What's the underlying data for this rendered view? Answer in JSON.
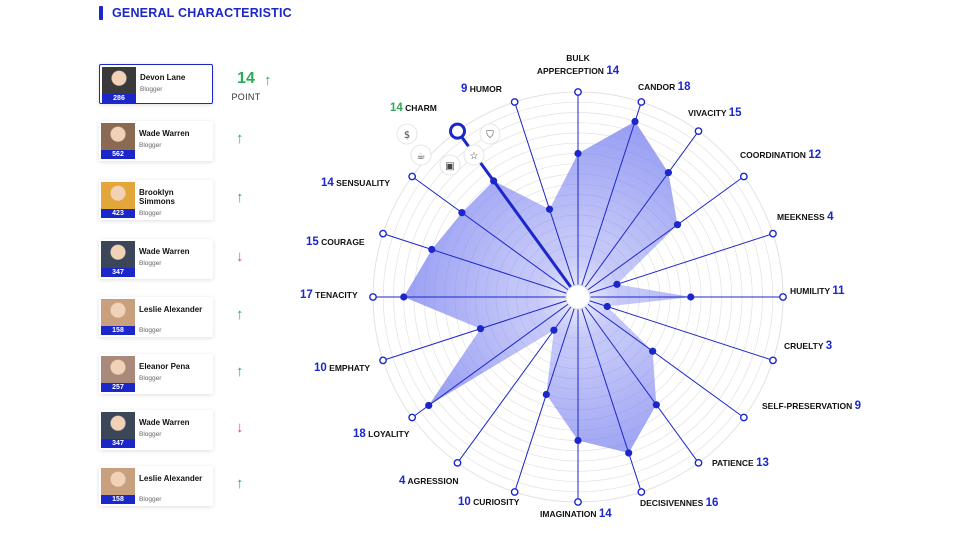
{
  "header": {
    "title": "GENERAL CHARACTERISTIC"
  },
  "users": [
    {
      "name": "Devon Lane",
      "role": "Blogger",
      "score": "286",
      "trend": "none",
      "active": true,
      "photo": "#3a3a3a"
    },
    {
      "name": "Wade Warren",
      "role": "Blogger",
      "score": "562",
      "trend": "up",
      "active": false,
      "photo": "#8a6a52"
    },
    {
      "name": "Brooklyn Simmons",
      "role": "Blogger",
      "score": "423",
      "trend": "up",
      "active": false,
      "photo": "#e2a63a"
    },
    {
      "name": "Wade Warren",
      "role": "Blogger",
      "score": "347",
      "trend": "down",
      "active": false,
      "photo": "#3b4758"
    },
    {
      "name": "Leslie Alexander",
      "role": "Blogger",
      "score": "158",
      "trend": "up",
      "active": false,
      "photo": "#c9a07e"
    },
    {
      "name": "Eleanor Pena",
      "role": "Blogger",
      "score": "257",
      "trend": "up",
      "active": false,
      "photo": "#a98a7a"
    },
    {
      "name": "Wade Warren",
      "role": "Blogger",
      "score": "347",
      "trend": "down",
      "active": false,
      "photo": "#3b4758"
    },
    {
      "name": "Leslie Alexander",
      "role": "Blogger",
      "score": "158",
      "trend": "up",
      "active": false,
      "photo": "#c9a07e"
    }
  ],
  "points": {
    "value": "14",
    "label": "POINT"
  },
  "icons": {
    "popover": [
      "dollar-icon",
      "shield-icon",
      "coffee-icon",
      "briefcase-icon",
      "star-icon"
    ],
    "arrow_up": "↑",
    "arrow_down": "↓"
  },
  "colors": {
    "accent": "#1c27c9",
    "fill": "#7b82f0",
    "up": "#2daa55",
    "down": "#e0514c"
  },
  "chart_data": {
    "type": "radar",
    "rmax": 20,
    "axes": [
      {
        "label": "BULK APPERCEPTION",
        "value": 14
      },
      {
        "label": "CANDOR",
        "value": 18
      },
      {
        "label": "VIVACITY",
        "value": 15
      },
      {
        "label": "COORDINATION",
        "value": 12
      },
      {
        "label": "MEEKNESS",
        "value": 4
      },
      {
        "label": "HUMILITY",
        "value": 11
      },
      {
        "label": "CRUELTY",
        "value": 3
      },
      {
        "label": "SELF-PRESERVATION",
        "value": 9
      },
      {
        "label": "PATIENCE",
        "value": 13
      },
      {
        "label": "DECISIVENNES",
        "value": 16
      },
      {
        "label": "IMAGINATION",
        "value": 14
      },
      {
        "label": "CURIOSITY",
        "value": 10
      },
      {
        "label": "AGRESSION",
        "value": 4
      },
      {
        "label": "LOYALITY",
        "value": 18
      },
      {
        "label": "EMPHATY",
        "value": 10
      },
      {
        "label": "TENACITY",
        "value": 17
      },
      {
        "label": "COURAGE",
        "value": 15
      },
      {
        "label": "SENSUALITY",
        "value": 14
      },
      {
        "label": "CHARM",
        "value": 14,
        "highlight": true
      },
      {
        "label": "HUMOR",
        "value": 9
      }
    ]
  }
}
